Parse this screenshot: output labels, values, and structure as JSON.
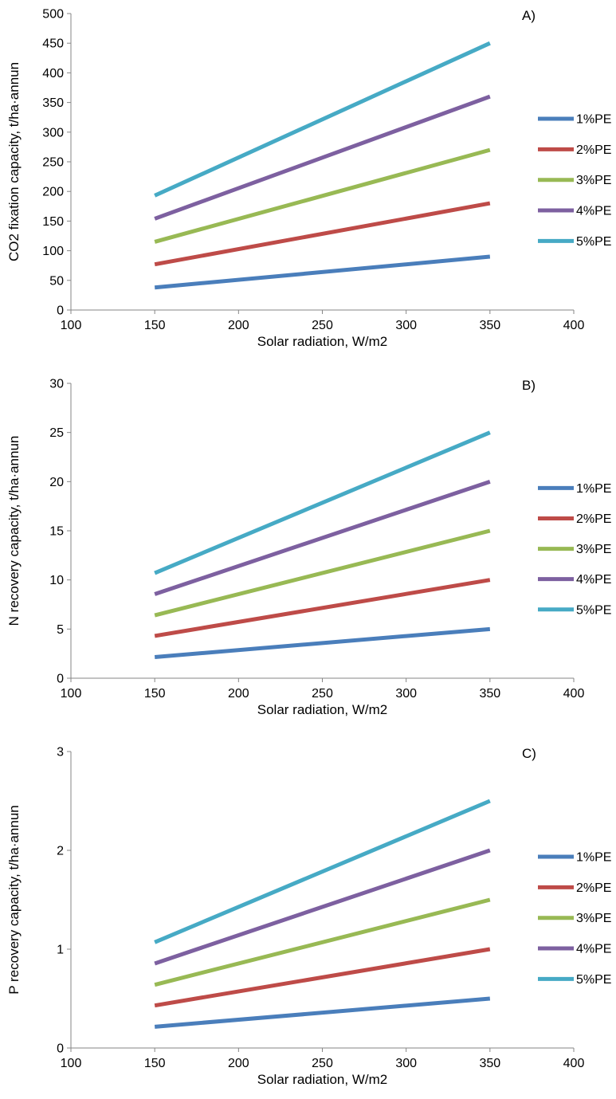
{
  "colors": {
    "1%PE": "#4A7EBB",
    "2%PE": "#BE4B48",
    "3%PE": "#98B954",
    "4%PE": "#7D60A0",
    "5%PE": "#46AAC5",
    "axis": "#868686"
  },
  "chart_data": [
    {
      "type": "line",
      "panel_label": "A)",
      "xlabel": "Solar radiation, W/m2",
      "ylabel": "CO2 fixation capacity, t/ha·annun",
      "xlim": [
        100,
        400
      ],
      "ylim": [
        0,
        500
      ],
      "xticks": [
        100,
        150,
        200,
        250,
        300,
        350,
        400
      ],
      "yticks": [
        0,
        50,
        100,
        150,
        200,
        250,
        300,
        350,
        400,
        450,
        500
      ],
      "grid": false,
      "legend": "right",
      "x": [
        150,
        350
      ],
      "series": [
        {
          "name": "1%PE",
          "values": [
            38,
            90
          ]
        },
        {
          "name": "2%PE",
          "values": [
            77,
            180
          ]
        },
        {
          "name": "3%PE",
          "values": [
            115,
            270
          ]
        },
        {
          "name": "4%PE",
          "values": [
            154,
            360
          ]
        },
        {
          "name": "5%PE",
          "values": [
            193,
            450
          ]
        }
      ]
    },
    {
      "type": "line",
      "panel_label": "B)",
      "xlabel": "Solar radiation, W/m2",
      "ylabel": "N recovery capacity, t/ha·annun",
      "xlim": [
        100,
        400
      ],
      "ylim": [
        0,
        30
      ],
      "xticks": [
        100,
        150,
        200,
        250,
        300,
        350,
        400
      ],
      "yticks": [
        0,
        5,
        10,
        15,
        20,
        25,
        30
      ],
      "grid": false,
      "legend": "right",
      "x": [
        150,
        350
      ],
      "series": [
        {
          "name": "1%PE",
          "values": [
            2.15,
            5
          ]
        },
        {
          "name": "2%PE",
          "values": [
            4.3,
            10
          ]
        },
        {
          "name": "3%PE",
          "values": [
            6.4,
            15
          ]
        },
        {
          "name": "4%PE",
          "values": [
            8.55,
            20
          ]
        },
        {
          "name": "5%PE",
          "values": [
            10.7,
            25
          ]
        }
      ]
    },
    {
      "type": "line",
      "panel_label": "C)",
      "xlabel": "Solar radiation, W/m2",
      "ylabel": "P recovery capacity, t/ha·annun",
      "xlim": [
        100,
        400
      ],
      "ylim": [
        0,
        3
      ],
      "xticks": [
        100,
        150,
        200,
        250,
        300,
        350,
        400
      ],
      "yticks": [
        0,
        1,
        2,
        3
      ],
      "grid": false,
      "legend": "right",
      "x": [
        150,
        350
      ],
      "series": [
        {
          "name": "1%PE",
          "values": [
            0.215,
            0.5
          ]
        },
        {
          "name": "2%PE",
          "values": [
            0.43,
            1.0
          ]
        },
        {
          "name": "3%PE",
          "values": [
            0.64,
            1.5
          ]
        },
        {
          "name": "4%PE",
          "values": [
            0.855,
            2.0
          ]
        },
        {
          "name": "5%PE",
          "values": [
            1.07,
            2.5
          ]
        }
      ]
    }
  ]
}
